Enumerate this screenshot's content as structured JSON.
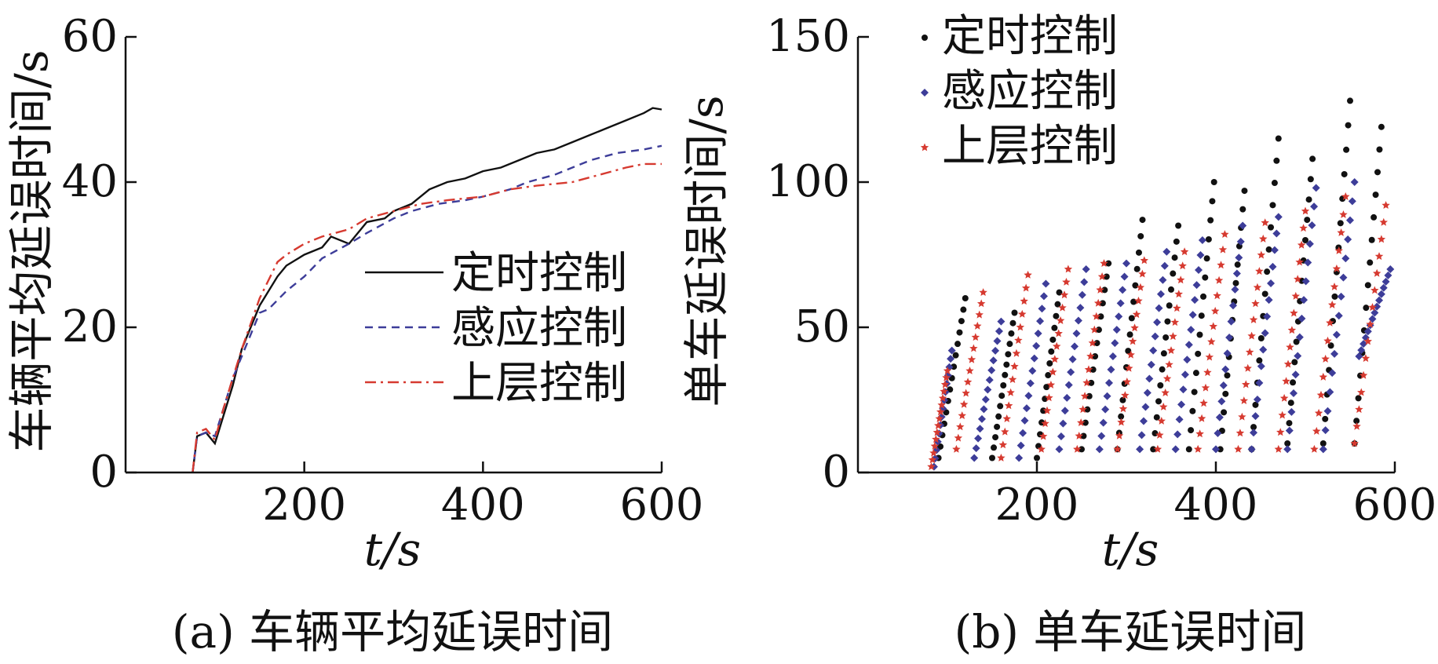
{
  "chart_data": [
    {
      "type": "line",
      "caption": "(a) 车辆平均延误时间",
      "xlabel": "t/s",
      "ylabel": "车辆平均延误时间/s",
      "xlim": [
        0,
        600
      ],
      "ylim": [
        0,
        60
      ],
      "xticks": [
        "200",
        "400",
        "600"
      ],
      "yticks": [
        "0",
        "20",
        "40",
        "60"
      ],
      "legend_position": "center-right",
      "series": [
        {
          "name": "定时控制",
          "color": "#111111",
          "style": "solid",
          "x": [
            75,
            80,
            90,
            100,
            110,
            120,
            130,
            150,
            170,
            180,
            200,
            220,
            230,
            250,
            270,
            290,
            300,
            320,
            340,
            360,
            380,
            400,
            420,
            440,
            460,
            480,
            500,
            520,
            540,
            560,
            580,
            590,
            600
          ],
          "y": [
            0,
            5,
            5.5,
            4,
            8,
            12,
            17,
            23,
            27,
            28.5,
            30,
            31,
            32.5,
            31.5,
            34.5,
            35,
            36,
            37,
            39,
            40,
            40.5,
            41.5,
            42,
            43,
            44,
            44.5,
            45.5,
            46.5,
            47.5,
            48.5,
            49.5,
            50.2,
            50
          ]
        },
        {
          "name": "感应控制",
          "color": "#3d3d99",
          "style": "dashed",
          "x": [
            75,
            80,
            90,
            100,
            110,
            120,
            130,
            150,
            160,
            180,
            200,
            220,
            250,
            270,
            300,
            320,
            350,
            380,
            400,
            430,
            450,
            480,
            500,
            520,
            550,
            580,
            600
          ],
          "y": [
            0,
            5,
            5.5,
            5,
            9,
            13,
            16,
            22,
            22.5,
            25,
            27,
            29.5,
            31.5,
            33,
            35,
            36,
            37,
            37.5,
            38,
            39,
            40,
            41,
            42,
            43,
            44,
            44.5,
            45
          ]
        },
        {
          "name": "上层控制",
          "color": "#d63a30",
          "style": "dashdot",
          "x": [
            75,
            80,
            90,
            100,
            110,
            120,
            130,
            150,
            170,
            180,
            200,
            220,
            250,
            270,
            300,
            330,
            360,
            400,
            430,
            460,
            500,
            530,
            560,
            580,
            600
          ],
          "y": [
            0,
            5.5,
            6,
            4.5,
            9,
            13,
            17,
            24,
            29,
            30,
            31.5,
            32.5,
            33.5,
            35,
            36,
            37,
            37.5,
            38,
            39,
            39.5,
            40,
            41,
            42,
            42.5,
            42.5
          ]
        }
      ]
    },
    {
      "type": "scatter",
      "caption": "(b) 单车延误时间",
      "xlabel": "t/s",
      "ylabel": "单车延误时间/s",
      "xlim": [
        0,
        600
      ],
      "ylim": [
        0,
        150
      ],
      "xticks": [
        "200",
        "400",
        "600"
      ],
      "yticks": [
        "0",
        "50",
        "100",
        "150"
      ],
      "legend_position": "top-left",
      "series": [
        {
          "name": "定时控制",
          "color": "#111111",
          "marker": "dot",
          "segments": [
            [
              90,
              5,
              120,
              60
            ],
            [
              150,
              5,
              175,
              55
            ],
            [
              200,
              5,
              225,
              62
            ],
            [
              250,
              8,
              280,
              72
            ],
            [
              290,
              8,
              318,
              87
            ],
            [
              330,
              8,
              358,
              85
            ],
            [
              370,
              8,
              398,
              100
            ],
            [
              405,
              8,
              432,
              97
            ],
            [
              440,
              8,
              470,
              115
            ],
            [
              480,
              10,
              508,
              108
            ],
            [
              520,
              10,
              550,
              128
            ],
            [
              555,
              10,
              585,
              119
            ]
          ]
        },
        {
          "name": "感应控制",
          "color": "#3d3d99",
          "marker": "diamond",
          "segments": [
            [
              85,
              2,
              105,
              42
            ],
            [
              130,
              5,
              160,
              52
            ],
            [
              180,
              5,
              210,
              65
            ],
            [
              225,
              8,
              255,
              70
            ],
            [
              270,
              8,
              300,
              72
            ],
            [
              315,
              8,
              345,
              76
            ],
            [
              355,
              8,
              385,
              80
            ],
            [
              400,
              8,
              430,
              85
            ],
            [
              440,
              8,
              470,
              88
            ],
            [
              480,
              8,
              512,
              98
            ],
            [
              520,
              8,
              555,
              100
            ],
            [
              560,
              40,
              595,
              70
            ]
          ]
        },
        {
          "name": "上层控制",
          "color": "#d63a30",
          "marker": "star",
          "segments": [
            [
              82,
              2,
              100,
              35
            ],
            [
              110,
              8,
              140,
              62
            ],
            [
              160,
              5,
              190,
              68
            ],
            [
              205,
              8,
              235,
              70
            ],
            [
              245,
              8,
              275,
              72
            ],
            [
              290,
              8,
              320,
              73
            ],
            [
              335,
              8,
              365,
              76
            ],
            [
              380,
              8,
              410,
              82
            ],
            [
              425,
              8,
              455,
              86
            ],
            [
              470,
              8,
              500,
              90
            ],
            [
              510,
              8,
              545,
              95
            ],
            [
              555,
              10,
              590,
              92
            ]
          ]
        }
      ]
    }
  ]
}
